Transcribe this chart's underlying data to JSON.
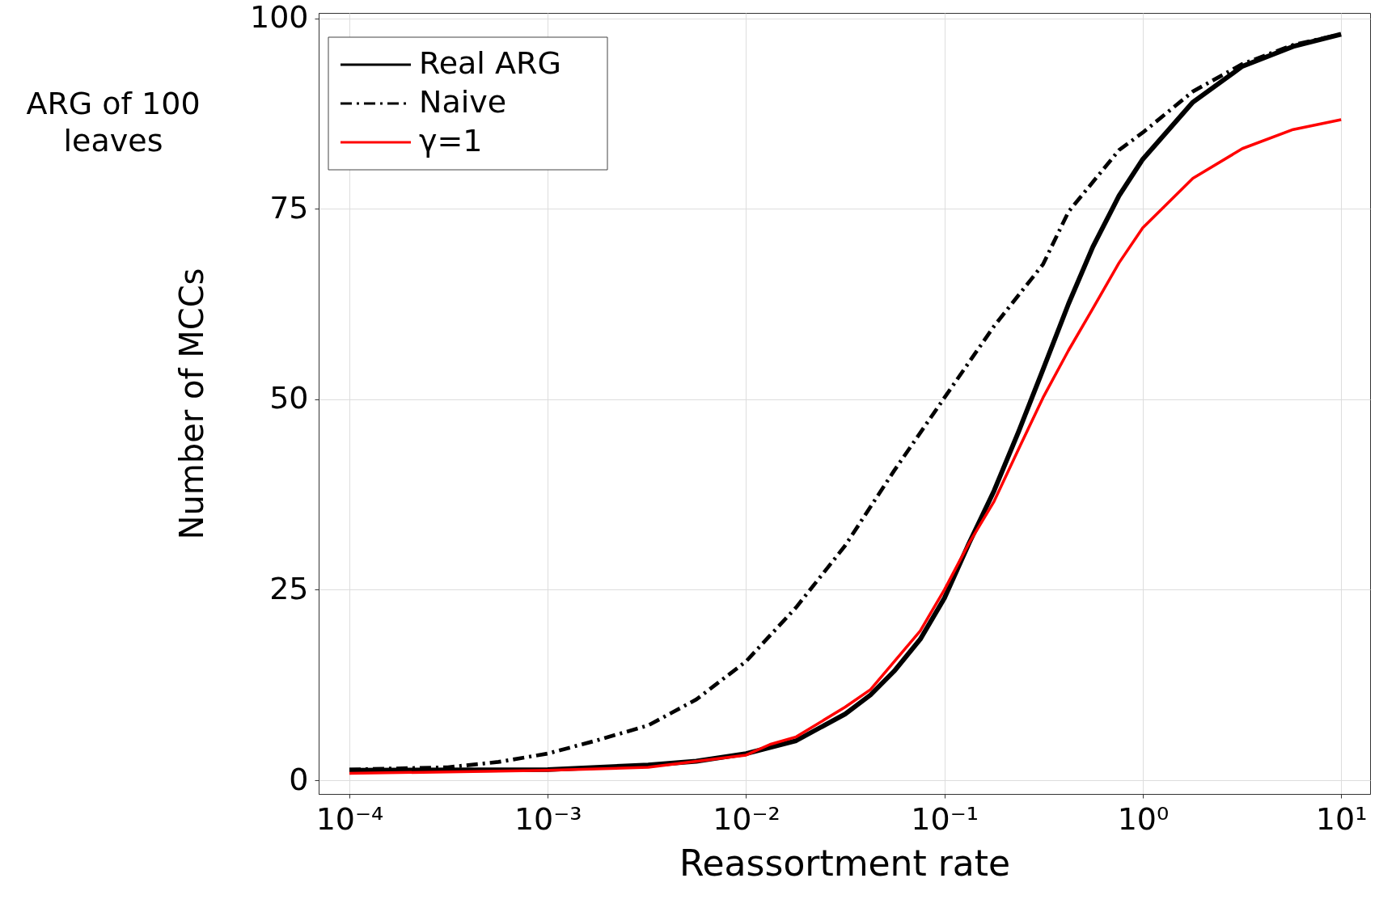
{
  "chart_data": {
    "type": "line",
    "xlabel": "Reassortment rate",
    "ylabel": "Number of MCCs",
    "annotations": [
      "ARG of 100 leaves"
    ],
    "log": "x",
    "grid": true,
    "legend": "top left",
    "xlim": [
      7e-05,
      14
    ],
    "xticks": [
      {
        "value": 0.0001,
        "label": "10⁻⁴"
      },
      {
        "value": 0.001,
        "label": "10⁻³"
      },
      {
        "value": 0.01,
        "label": "10⁻²"
      },
      {
        "value": 0.1,
        "label": "10⁻¹"
      },
      {
        "value": 1,
        "label": "10⁰"
      },
      {
        "value": 10,
        "label": "10¹"
      }
    ],
    "ylim": [
      -1.8,
      100.7
    ],
    "yticks": [
      0,
      25,
      50,
      75,
      100
    ],
    "series": [
      {
        "name": "Real ARG",
        "color": "#000000",
        "line_style": "solid",
        "x": [
          0.0001,
          0.001,
          0.00321,
          0.00561,
          0.01,
          0.0179,
          0.0316,
          0.0424,
          0.0557,
          0.0755,
          0.1,
          0.133,
          0.178,
          0.237,
          0.314,
          0.422,
          0.56,
          0.759,
          1,
          1.79,
          3.18,
          5.73,
          10
        ],
        "values": [
          1.3,
          1.4,
          2.0,
          2.5,
          3.5,
          5.2,
          8.7,
          11.2,
          14.3,
          18.5,
          23.9,
          31.1,
          38,
          45.8,
          53.9,
          62.5,
          70,
          76.7,
          81.5,
          89,
          93.7,
          96.3,
          97.9
        ]
      },
      {
        "name": "Naive",
        "color": "#000000",
        "line_style": "dashed",
        "x": [
          0.0001,
          0.000313,
          0.000564,
          0.001,
          0.00175,
          0.00321,
          0.00561,
          0.01,
          0.0179,
          0.0316,
          0.0557,
          0.1,
          0.178,
          0.314,
          0.422,
          0.759,
          1,
          1.79,
          3.18,
          5.73,
          10
        ],
        "values": [
          1.4,
          1.7,
          2.4,
          3.5,
          5.2,
          7.2,
          10.6,
          15.6,
          22.7,
          30.8,
          40.6,
          50.2,
          59.6,
          67.7,
          74.6,
          82.7,
          85,
          90.4,
          94,
          96.5,
          97.9
        ]
      },
      {
        "name": "γ=1",
        "color": "#ff0000",
        "line_style": "solid",
        "x": [
          0.0001,
          0.001,
          0.00321,
          0.01,
          0.0132,
          0.0179,
          0.0316,
          0.0424,
          0.0755,
          0.1,
          0.133,
          0.178,
          0.237,
          0.314,
          0.422,
          0.56,
          0.759,
          1,
          1.79,
          3.18,
          5.73,
          10
        ],
        "values": [
          0.9,
          1.3,
          1.7,
          3.3,
          4.7,
          5.7,
          9.6,
          11.9,
          19.6,
          25,
          31.1,
          36.6,
          43.5,
          50.2,
          56.4,
          61.9,
          67.9,
          72.5,
          79,
          82.9,
          85.4,
          86.7
        ]
      }
    ]
  }
}
